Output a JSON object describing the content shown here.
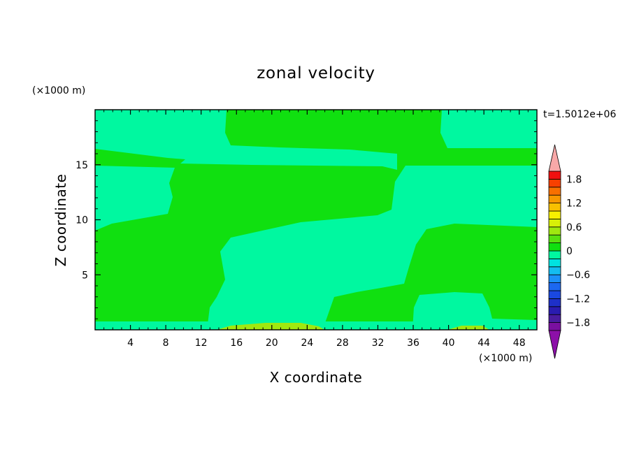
{
  "chart_data": {
    "type": "contour",
    "title": "zonal velocity",
    "xlabel": "X coordinate",
    "ylabel": "Z coordinate",
    "x_unit": "(×1000 m)",
    "y_unit": "(×1000 m)",
    "time_label": "t=1.5012e+06",
    "xlim": [
      0,
      50
    ],
    "ylim": [
      0,
      20
    ],
    "x_ticks": [
      4,
      8,
      12,
      16,
      20,
      24,
      28,
      32,
      36,
      40,
      44,
      48
    ],
    "y_ticks": [
      5,
      10,
      15
    ],
    "colorbar": {
      "levels": [
        -2.0,
        -1.8,
        -1.6,
        -1.4,
        -1.2,
        -1.0,
        -0.8,
        -0.6,
        -0.4,
        -0.2,
        0.0,
        0.2,
        0.4,
        0.6,
        0.8,
        1.0,
        1.2,
        1.4,
        1.6,
        1.8,
        2.0
      ],
      "labels": [
        "1.8",
        "1.2",
        "0.6",
        "0",
        "−0.6",
        "−1.2",
        "−1.8"
      ],
      "label_values": [
        1.8,
        1.2,
        0.6,
        0.0,
        -0.6,
        -1.2,
        -1.8
      ],
      "colors": [
        "#7a10a0",
        "#4a1ca0",
        "#2a1cb0",
        "#1e30c8",
        "#1a48e0",
        "#1c68f0",
        "#1c90f8",
        "#14bcf0",
        "#00e2e0",
        "#00f8a0",
        "#10e010",
        "#58e010",
        "#a0e810",
        "#d8f008",
        "#f8f000",
        "#f8c000",
        "#f89800",
        "#f87000",
        "#f84000",
        "#f01010"
      ],
      "under_color": "#8c10a8",
      "over_color": "#f8a8a8"
    },
    "fields": {
      "cyan": "#00f8a0",
      "green": "#10e010",
      "lime": "#a0e810"
    }
  }
}
